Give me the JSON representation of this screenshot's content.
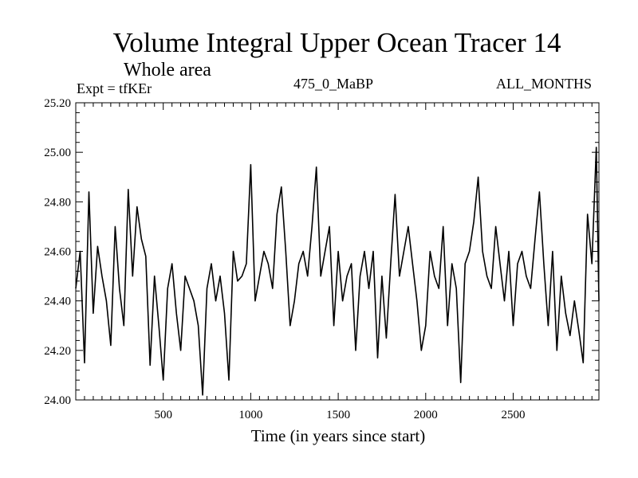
{
  "chart_data": {
    "type": "line",
    "title": "Volume Integral Upper Ocean Tracer 14",
    "subtitle": "Whole area",
    "experiment_label": "Expt = tfKEr",
    "run_label": "475_0_MaBP",
    "period_label": "ALL_MONTHS",
    "xlabel": "Time (in years since start)",
    "ylabel": "",
    "xlim": [
      0,
      2990
    ],
    "ylim": [
      24.0,
      25.2
    ],
    "x_ticks": [
      500,
      1000,
      1500,
      2000,
      2500
    ],
    "x_tick_labels": [
      "500",
      "1000",
      "1500",
      "2000",
      "2500"
    ],
    "y_ticks": [
      24.0,
      24.2,
      24.4,
      24.6,
      24.8,
      25.0,
      25.2
    ],
    "y_tick_labels": [
      "24.00",
      "24.20",
      "24.40",
      "24.60",
      "24.80",
      "25.00",
      "25.20"
    ],
    "grid": false,
    "line_color": "#000000",
    "series": [
      {
        "x": [
          0,
          25,
          50,
          75,
          100,
          125,
          150,
          175,
          200,
          225,
          250,
          275,
          300,
          325,
          350,
          375,
          400,
          425,
          450,
          475,
          500,
          525,
          550,
          575,
          600,
          625,
          650,
          675,
          700,
          725,
          750,
          775,
          800,
          825,
          850,
          875,
          900,
          925,
          950,
          975,
          1000,
          1025,
          1050,
          1075,
          1100,
          1125,
          1150,
          1175,
          1200,
          1225,
          1250,
          1275,
          1300,
          1325,
          1350,
          1375,
          1400,
          1425,
          1450,
          1475,
          1500,
          1525,
          1550,
          1575,
          1600,
          1625,
          1650,
          1675,
          1700,
          1725,
          1750,
          1775,
          1800,
          1825,
          1850,
          1875,
          1900,
          1925,
          1950,
          1975,
          2000,
          2025,
          2050,
          2075,
          2100,
          2125,
          2150,
          2175,
          2200,
          2225,
          2250,
          2275,
          2300,
          2325,
          2350,
          2375,
          2400,
          2425,
          2450,
          2475,
          2500,
          2525,
          2550,
          2575,
          2600,
          2625,
          2650,
          2675,
          2700,
          2725,
          2750,
          2775,
          2800,
          2825,
          2850,
          2875,
          2900,
          2925,
          2950,
          2975,
          2990
        ],
        "values": [
          24.45,
          24.6,
          24.15,
          24.84,
          24.35,
          24.62,
          24.5,
          24.4,
          24.22,
          24.7,
          24.45,
          24.3,
          24.85,
          24.5,
          24.78,
          24.65,
          24.58,
          24.14,
          24.5,
          24.3,
          24.08,
          24.45,
          24.55,
          24.35,
          24.2,
          24.5,
          24.45,
          24.4,
          24.3,
          24.02,
          24.45,
          24.55,
          24.4,
          24.5,
          24.35,
          24.08,
          24.6,
          24.48,
          24.5,
          24.55,
          24.95,
          24.4,
          24.5,
          24.6,
          24.55,
          24.45,
          24.75,
          24.86,
          24.6,
          24.3,
          24.4,
          24.55,
          24.6,
          24.5,
          24.7,
          24.94,
          24.5,
          24.6,
          24.7,
          24.3,
          24.6,
          24.4,
          24.5,
          24.55,
          24.2,
          24.5,
          24.6,
          24.45,
          24.6,
          24.17,
          24.5,
          24.25,
          24.55,
          24.83,
          24.5,
          24.6,
          24.7,
          24.55,
          24.4,
          24.2,
          24.3,
          24.6,
          24.5,
          24.45,
          24.7,
          24.3,
          24.55,
          24.45,
          24.07,
          24.55,
          24.6,
          24.72,
          24.9,
          24.6,
          24.5,
          24.45,
          24.7,
          24.55,
          24.4,
          24.6,
          24.3,
          24.55,
          24.6,
          24.5,
          24.45,
          24.65,
          24.84,
          24.55,
          24.3,
          24.6,
          24.2,
          24.5,
          24.35,
          24.26,
          24.4,
          24.28,
          24.15,
          24.75,
          24.55,
          25.02,
          24.4
        ]
      }
    ]
  }
}
